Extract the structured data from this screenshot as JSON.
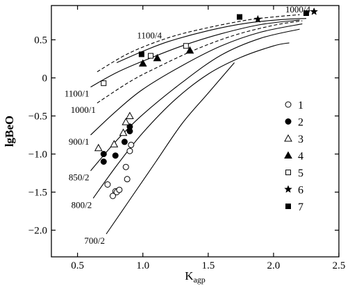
{
  "chart_data": {
    "type": "scatter",
    "title": "",
    "xlabel": "K",
    "xlabel_sub": "agp",
    "ylabel": "lgBeO",
    "xlim": [
      0.3,
      2.5
    ],
    "ylim": [
      -2.35,
      0.95
    ],
    "xticks": [
      0.5,
      1.0,
      1.5,
      2.0,
      2.5
    ],
    "xtick_labels": [
      "0.5",
      "1.0",
      "1.5",
      "2.0",
      "2.5"
    ],
    "yticks": [
      0.5,
      0,
      -0.5,
      -1.0,
      -1.5,
      -2.0
    ],
    "ytick_labels": [
      "0.5",
      "0",
      "−0.5",
      "−1.0",
      "−1.5",
      "−2.0"
    ],
    "grid": false,
    "legend_position": "right",
    "curves": [
      {
        "label": "1000/4",
        "dashed": true,
        "points": [
          [
            0.65,
            0.08
          ],
          [
            0.9,
            0.33
          ],
          [
            1.2,
            0.53
          ],
          [
            1.5,
            0.66
          ],
          [
            1.8,
            0.76
          ],
          [
            2.0,
            0.8
          ],
          [
            2.2,
            0.83
          ]
        ]
      },
      {
        "label": "1100/4",
        "dashed": false,
        "points": [
          [
            0.8,
            0.2
          ],
          [
            1.0,
            0.35
          ],
          [
            1.2,
            0.48
          ],
          [
            1.5,
            0.62
          ],
          [
            1.8,
            0.72
          ],
          [
            2.1,
            0.77
          ],
          [
            2.25,
            0.78
          ]
        ]
      },
      {
        "label": "1100/1",
        "dashed": false,
        "points": [
          [
            0.6,
            -0.12
          ],
          [
            0.8,
            0.07
          ],
          [
            1.0,
            0.22
          ],
          [
            1.3,
            0.42
          ],
          [
            1.6,
            0.58
          ],
          [
            1.9,
            0.7
          ],
          [
            2.2,
            0.76
          ]
        ]
      },
      {
        "label": "1000/1",
        "dashed": true,
        "points": [
          [
            0.65,
            -0.33
          ],
          [
            0.9,
            -0.05
          ],
          [
            1.1,
            0.13
          ],
          [
            1.4,
            0.37
          ],
          [
            1.7,
            0.56
          ],
          [
            2.0,
            0.69
          ],
          [
            2.22,
            0.75
          ]
        ]
      },
      {
        "label": "900/1",
        "dashed": false,
        "points": [
          [
            0.6,
            -0.75
          ],
          [
            0.8,
            -0.43
          ],
          [
            1.0,
            -0.15
          ],
          [
            1.3,
            0.16
          ],
          [
            1.6,
            0.42
          ],
          [
            1.9,
            0.6
          ],
          [
            2.22,
            0.71
          ]
        ]
      },
      {
        "label": "850/2",
        "dashed": false,
        "points": [
          [
            0.6,
            -1.22
          ],
          [
            0.8,
            -0.82
          ],
          [
            1.0,
            -0.48
          ],
          [
            1.3,
            -0.06
          ],
          [
            1.6,
            0.3
          ],
          [
            1.9,
            0.52
          ],
          [
            2.2,
            0.64
          ]
        ]
      },
      {
        "label": "800/2",
        "dashed": false,
        "points": [
          [
            0.62,
            -1.58
          ],
          [
            0.8,
            -1.15
          ],
          [
            1.0,
            -0.72
          ],
          [
            1.25,
            -0.28
          ],
          [
            1.5,
            0.05
          ],
          [
            1.75,
            0.27
          ],
          [
            2.0,
            0.42
          ],
          [
            2.12,
            0.46
          ]
        ]
      },
      {
        "label": "700/2",
        "dashed": false,
        "points": [
          [
            0.72,
            -2.05
          ],
          [
            0.9,
            -1.6
          ],
          [
            1.1,
            -1.1
          ],
          [
            1.3,
            -0.6
          ],
          [
            1.5,
            -0.2
          ],
          [
            1.7,
            0.2
          ]
        ]
      }
    ],
    "series": [
      {
        "name": "1",
        "marker": "open-circle",
        "points": [
          [
            0.73,
            -1.4
          ],
          [
            0.79,
            -1.49
          ],
          [
            0.8,
            -1.5
          ],
          [
            0.82,
            -1.47
          ],
          [
            0.87,
            -1.17
          ],
          [
            0.88,
            -1.33
          ],
          [
            0.9,
            -0.96
          ],
          [
            0.91,
            -0.88
          ],
          [
            0.77,
            -1.55
          ]
        ]
      },
      {
        "name": "2",
        "marker": "filled-circle",
        "points": [
          [
            0.7,
            -1.0
          ],
          [
            0.7,
            -1.1
          ],
          [
            0.79,
            -1.02
          ],
          [
            0.86,
            -0.84
          ],
          [
            0.9,
            -0.7
          ],
          [
            0.9,
            -0.64
          ]
        ]
      },
      {
        "name": "3",
        "marker": "open-triangle",
        "points": [
          [
            0.66,
            -0.92
          ],
          [
            0.78,
            -0.87
          ],
          [
            0.85,
            -0.72
          ],
          [
            0.87,
            -0.58
          ],
          [
            0.9,
            -0.5
          ]
        ]
      },
      {
        "name": "4",
        "marker": "filled-triangle",
        "points": [
          [
            1.0,
            0.19
          ],
          [
            1.11,
            0.26
          ],
          [
            1.36,
            0.36
          ]
        ]
      },
      {
        "name": "5",
        "marker": "open-square",
        "points": [
          [
            0.7,
            -0.07
          ],
          [
            1.06,
            0.29
          ],
          [
            1.33,
            0.42
          ]
        ]
      },
      {
        "name": "6",
        "marker": "star",
        "points": [
          [
            1.88,
            0.77
          ],
          [
            2.31,
            0.87
          ]
        ]
      },
      {
        "name": "7",
        "marker": "filled-square",
        "points": [
          [
            0.99,
            0.31
          ],
          [
            1.74,
            0.8
          ],
          [
            2.25,
            0.85
          ]
        ]
      }
    ]
  }
}
